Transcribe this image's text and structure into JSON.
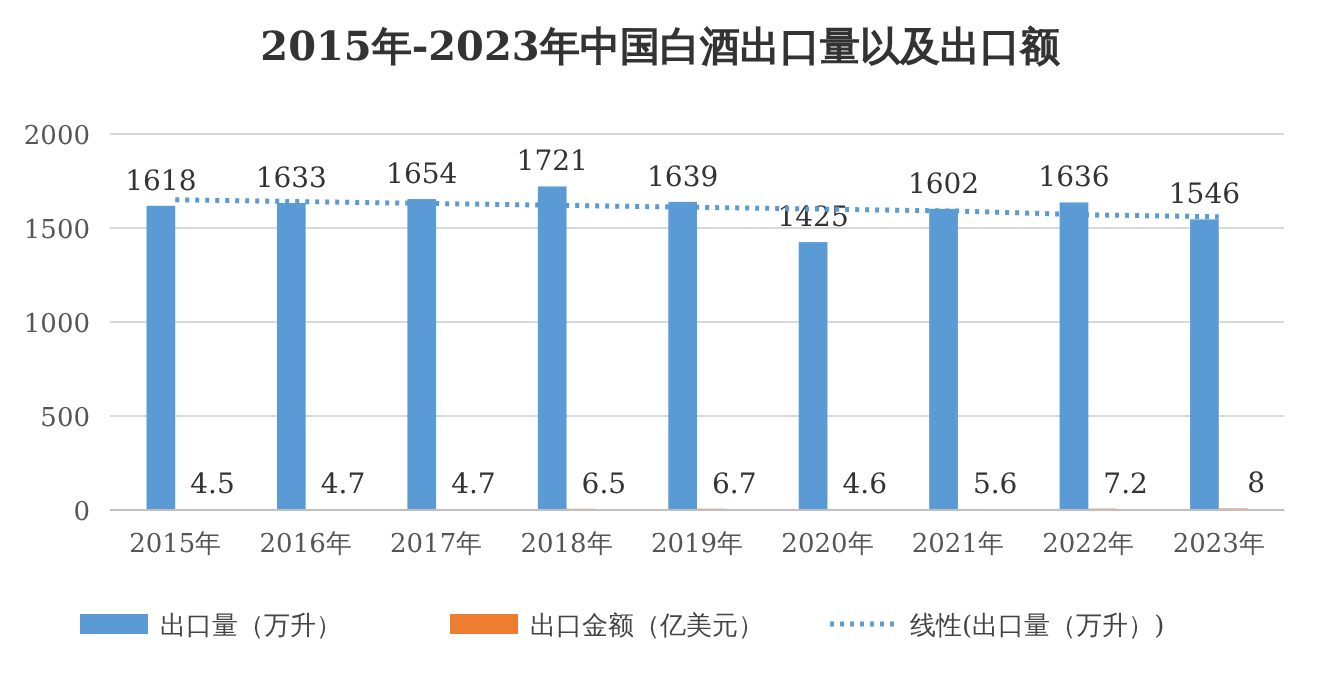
{
  "chart_data": {
    "type": "bar",
    "title": "2015年-2023年中国白酒出口量以及出口额",
    "categories": [
      "2015年",
      "2016年",
      "2017年",
      "2018年",
      "2019年",
      "2020年",
      "2021年",
      "2022年",
      "2023年"
    ],
    "series": [
      {
        "name": "出口量（万升）",
        "color": "#5b9bd5",
        "values": [
          1618,
          1633,
          1654,
          1721,
          1639,
          1425,
          1602,
          1636,
          1546
        ],
        "value_labels": [
          "1618",
          "1633",
          "1654",
          "1721",
          "1639",
          "1425",
          "1602",
          "1636",
          "1546"
        ]
      },
      {
        "name": "出口金额（亿美元）",
        "color": "#ed7d31",
        "values": [
          4.5,
          4.7,
          4.7,
          6.5,
          6.7,
          4.6,
          5.6,
          7.2,
          8
        ],
        "value_labels": [
          "4.5",
          "4.7",
          "4.7",
          "6.5",
          "6.7",
          "4.6",
          "5.6",
          "7.2",
          "8"
        ]
      },
      {
        "name": "线性(出口量（万升）)",
        "type": "line",
        "color": "#5b9bd5",
        "line_style": "dotted",
        "marker": "none",
        "values": [
          1650,
          1640,
          1630,
          1620,
          1610,
          1600,
          1590,
          1570,
          1560
        ]
      }
    ],
    "ylim": [
      0,
      2000
    ],
    "yticks": [
      0,
      500,
      1000,
      1500,
      2000
    ],
    "grid": "y",
    "legend": "bottom"
  }
}
